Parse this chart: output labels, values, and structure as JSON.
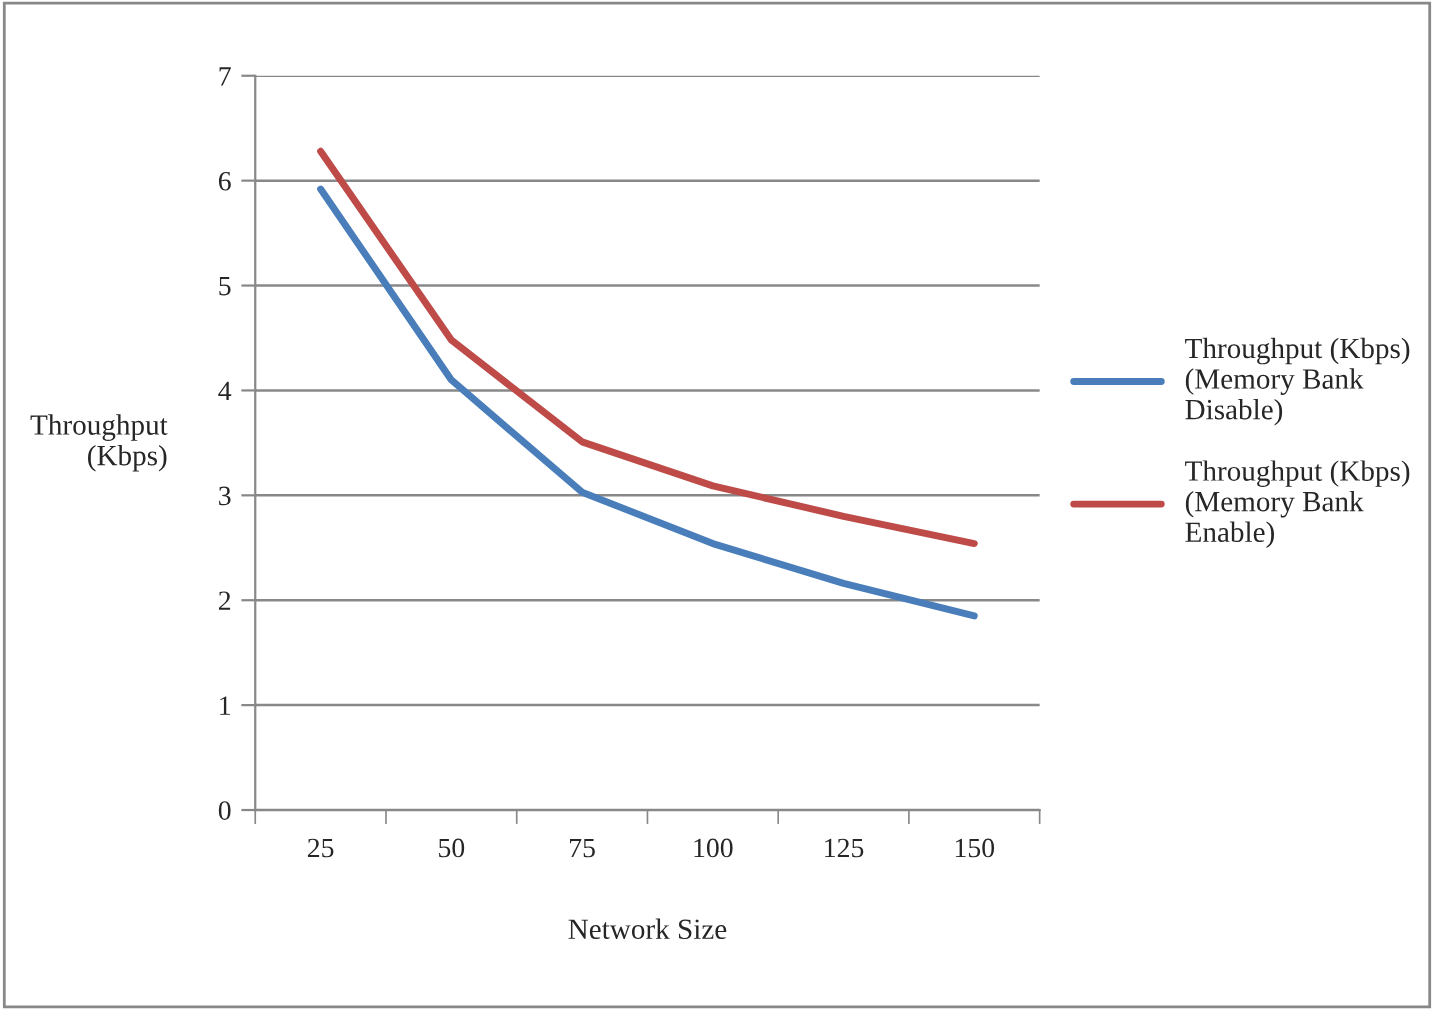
{
  "chart_data": {
    "type": "line",
    "xlabel": "Network Size",
    "ylabel": "Throughput\n (Kbps)",
    "categories": [
      "25",
      "50",
      "75",
      "100",
      "125",
      "150"
    ],
    "series": [
      {
        "name": "Throughput (Kbps)\n(Memory Bank\nDisable)",
        "color": "#4a7ebb",
        "values": [
          5.92,
          4.1,
          3.03,
          2.54,
          2.16,
          1.85
        ]
      },
      {
        "name": "Throughput (Kbps)\n(Memory Bank\nEnable)",
        "color": "#be4b48",
        "values": [
          6.28,
          4.48,
          3.51,
          3.09,
          2.8,
          2.54
        ]
      }
    ],
    "ylim": [
      0,
      7
    ],
    "yticks": [
      0,
      1,
      2,
      3,
      4,
      5,
      6,
      7
    ],
    "grid": "y",
    "legend": "right",
    "marker": "none",
    "line_style": "solid"
  }
}
